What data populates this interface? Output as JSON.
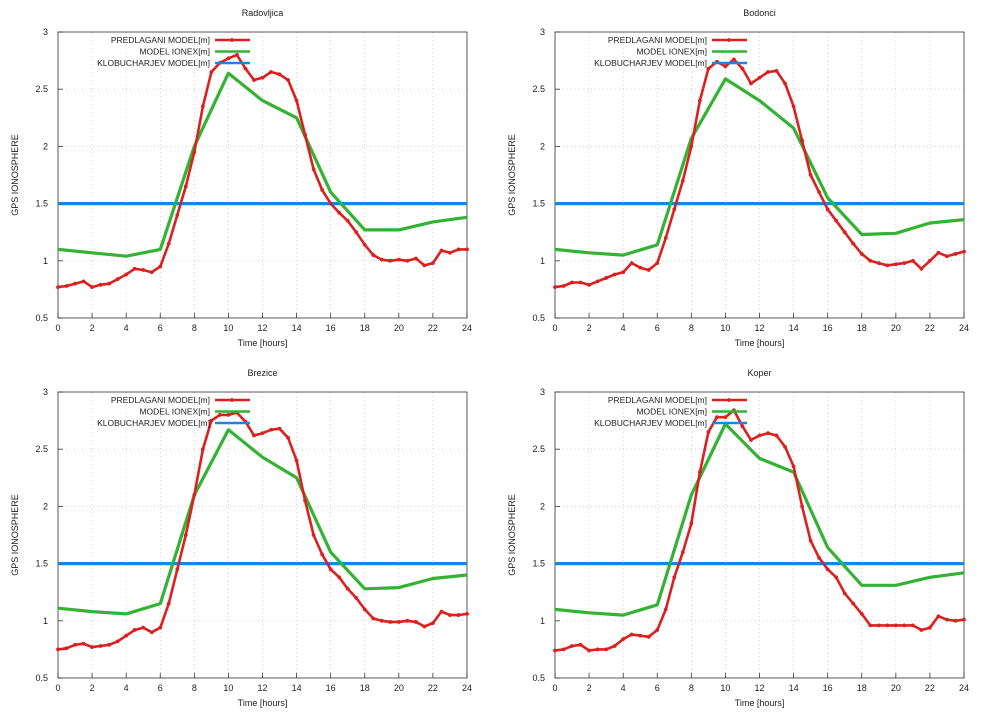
{
  "colors": {
    "predlagani": "#dc1f1f",
    "ionex": "#33b233",
    "klobuchar": "#1a86e0",
    "axis": "#333333",
    "grid": "#b8b8b8"
  },
  "chart_data": [
    {
      "type": "line",
      "title": "Radovljica",
      "xlabel": "Time [hours]",
      "ylabel": "GPS IONOSPHERE",
      "xlim": [
        0,
        24
      ],
      "ylim": [
        0.5,
        3
      ],
      "xticks": [
        0,
        2,
        4,
        6,
        8,
        10,
        12,
        14,
        16,
        18,
        20,
        22,
        24
      ],
      "yticks": [
        0.5,
        1,
        1.5,
        2,
        2.5,
        3
      ],
      "grid": true,
      "legend_position": "top-left",
      "series": [
        {
          "name": "PREDLAGANI MODEL[m]",
          "color": "#dc1f1f",
          "markers": true,
          "x": [
            0,
            0.5,
            1,
            1.5,
            2,
            2.5,
            3,
            3.5,
            4,
            4.5,
            5,
            5.5,
            6,
            6.5,
            7,
            7.5,
            8,
            8.5,
            9,
            9.5,
            10,
            10.5,
            11,
            11.5,
            12,
            12.5,
            13,
            13.5,
            14,
            14.5,
            15,
            15.5,
            16,
            16.5,
            17,
            17.5,
            18,
            18.5,
            19,
            19.5,
            20,
            20.5,
            21,
            21.5,
            22,
            22.5,
            23,
            23.5,
            24
          ],
          "y": [
            0.77,
            0.78,
            0.8,
            0.82,
            0.77,
            0.79,
            0.8,
            0.84,
            0.88,
            0.93,
            0.92,
            0.9,
            0.95,
            1.15,
            1.4,
            1.65,
            1.95,
            2.35,
            2.65,
            2.73,
            2.77,
            2.8,
            2.68,
            2.58,
            2.6,
            2.65,
            2.63,
            2.58,
            2.4,
            2.1,
            1.8,
            1.62,
            1.5,
            1.42,
            1.35,
            1.25,
            1.14,
            1.05,
            1.01,
            1.0,
            1.01,
            1.0,
            1.02,
            0.96,
            0.98,
            1.09,
            1.07,
            1.1,
            1.1
          ]
        },
        {
          "name": "MODEL IONEX[m]",
          "color": "#33b233",
          "markers": false,
          "x": [
            0,
            2,
            4,
            6,
            8,
            10,
            12,
            14,
            16,
            18,
            20,
            22,
            24
          ],
          "y": [
            1.1,
            1.07,
            1.04,
            1.1,
            2.0,
            2.64,
            2.4,
            2.25,
            1.6,
            1.27,
            1.27,
            1.34,
            1.38
          ]
        },
        {
          "name": "KLOBUCHARJEV MODEL[m]",
          "color": "#1a86e0",
          "markers": false,
          "x": [
            0,
            24
          ],
          "y": [
            1.5,
            1.5
          ]
        }
      ]
    },
    {
      "type": "line",
      "title": "Bodonci",
      "xlabel": "Time [hours]",
      "ylabel": "GPS IONOSPHERE",
      "xlim": [
        0,
        24
      ],
      "ylim": [
        0.5,
        3
      ],
      "xticks": [
        0,
        2,
        4,
        6,
        8,
        10,
        12,
        14,
        16,
        18,
        20,
        22,
        24
      ],
      "yticks": [
        0.5,
        1,
        1.5,
        2,
        2.5,
        3
      ],
      "grid": true,
      "legend_position": "top-left",
      "series": [
        {
          "name": "PREDLAGANI MODEL[m]",
          "color": "#dc1f1f",
          "markers": true,
          "x": [
            0,
            0.5,
            1,
            1.5,
            2,
            2.5,
            3,
            3.5,
            4,
            4.5,
            5,
            5.5,
            6,
            6.5,
            7,
            7.5,
            8,
            8.5,
            9,
            9.5,
            10,
            10.5,
            11,
            11.5,
            12,
            12.5,
            13,
            13.5,
            14,
            14.5,
            15,
            15.5,
            16,
            16.5,
            17,
            17.5,
            18,
            18.5,
            19,
            19.5,
            20,
            20.5,
            21,
            21.5,
            22,
            22.5,
            23,
            23.5,
            24
          ],
          "y": [
            0.77,
            0.78,
            0.81,
            0.81,
            0.79,
            0.82,
            0.85,
            0.88,
            0.9,
            0.98,
            0.94,
            0.92,
            0.98,
            1.2,
            1.45,
            1.7,
            2.0,
            2.4,
            2.68,
            2.74,
            2.7,
            2.76,
            2.68,
            2.55,
            2.6,
            2.65,
            2.66,
            2.55,
            2.35,
            2.05,
            1.75,
            1.6,
            1.45,
            1.35,
            1.25,
            1.15,
            1.06,
            1.0,
            0.98,
            0.96,
            0.97,
            0.98,
            1.0,
            0.93,
            1.0,
            1.07,
            1.04,
            1.06,
            1.08
          ]
        },
        {
          "name": "MODEL IONEX[m]",
          "color": "#33b233",
          "markers": false,
          "x": [
            0,
            2,
            4,
            6,
            8,
            10,
            12,
            14,
            16,
            18,
            20,
            22,
            24
          ],
          "y": [
            1.1,
            1.07,
            1.05,
            1.14,
            2.07,
            2.59,
            2.4,
            2.16,
            1.55,
            1.23,
            1.24,
            1.33,
            1.36
          ]
        },
        {
          "name": "KLOBUCHARJEV MODEL[m]",
          "color": "#1a86e0",
          "markers": false,
          "x": [
            0,
            24
          ],
          "y": [
            1.5,
            1.5
          ]
        }
      ]
    },
    {
      "type": "line",
      "title": "Brezice",
      "xlabel": "Time [hours]",
      "ylabel": "GPS IONOSPHERE",
      "xlim": [
        0,
        24
      ],
      "ylim": [
        0.5,
        3
      ],
      "xticks": [
        0,
        2,
        4,
        6,
        8,
        10,
        12,
        14,
        16,
        18,
        20,
        22,
        24
      ],
      "yticks": [
        0.5,
        1,
        1.5,
        2,
        2.5,
        3
      ],
      "grid": true,
      "legend_position": "top-left",
      "series": [
        {
          "name": "PREDLAGANI MODEL[m]",
          "color": "#dc1f1f",
          "markers": true,
          "x": [
            0,
            0.5,
            1,
            1.5,
            2,
            2.5,
            3,
            3.5,
            4,
            4.5,
            5,
            5.5,
            6,
            6.5,
            7,
            7.5,
            8,
            8.5,
            9,
            9.5,
            10,
            10.5,
            11,
            11.5,
            12,
            12.5,
            13,
            13.5,
            14,
            14.5,
            15,
            15.5,
            16,
            16.5,
            17,
            17.5,
            18,
            18.5,
            19,
            19.5,
            20,
            20.5,
            21,
            21.5,
            22,
            22.5,
            23,
            23.5,
            24
          ],
          "y": [
            0.75,
            0.76,
            0.79,
            0.8,
            0.77,
            0.78,
            0.79,
            0.82,
            0.87,
            0.92,
            0.94,
            0.9,
            0.94,
            1.15,
            1.45,
            1.75,
            2.1,
            2.5,
            2.75,
            2.8,
            2.8,
            2.82,
            2.74,
            2.62,
            2.64,
            2.67,
            2.68,
            2.6,
            2.4,
            2.05,
            1.75,
            1.58,
            1.45,
            1.38,
            1.28,
            1.2,
            1.1,
            1.02,
            1.0,
            0.99,
            0.99,
            1.0,
            0.99,
            0.95,
            0.98,
            1.08,
            1.05,
            1.05,
            1.06
          ]
        },
        {
          "name": "MODEL IONEX[m]",
          "color": "#33b233",
          "markers": false,
          "x": [
            0,
            2,
            4,
            6,
            8,
            10,
            12,
            14,
            16,
            18,
            20,
            22,
            24
          ],
          "y": [
            1.11,
            1.08,
            1.06,
            1.15,
            2.1,
            2.67,
            2.43,
            2.25,
            1.6,
            1.28,
            1.29,
            1.37,
            1.4
          ]
        },
        {
          "name": "KLOBUCHARJEV MODEL[m]",
          "color": "#1a86e0",
          "markers": false,
          "x": [
            0,
            24
          ],
          "y": [
            1.5,
            1.5
          ]
        }
      ]
    },
    {
      "type": "line",
      "title": "Koper",
      "xlabel": "Time [hours]",
      "ylabel": "GPS IONOSPHERE",
      "xlim": [
        0,
        24
      ],
      "ylim": [
        0.5,
        3
      ],
      "xticks": [
        0,
        2,
        4,
        6,
        8,
        10,
        12,
        14,
        16,
        18,
        20,
        22,
        24
      ],
      "yticks": [
        0.5,
        1,
        1.5,
        2,
        2.5,
        3
      ],
      "grid": true,
      "legend_position": "top-left",
      "series": [
        {
          "name": "PREDLAGANI MODEL[m]",
          "color": "#dc1f1f",
          "markers": true,
          "x": [
            0,
            0.5,
            1,
            1.5,
            2,
            2.5,
            3,
            3.5,
            4,
            4.5,
            5,
            5.5,
            6,
            6.5,
            7,
            7.5,
            8,
            8.5,
            9,
            9.5,
            10,
            10.5,
            11,
            11.5,
            12,
            12.5,
            13,
            13.5,
            14,
            14.5,
            15,
            15.5,
            16,
            16.5,
            17,
            17.5,
            18,
            18.5,
            19,
            19.5,
            20,
            20.5,
            21,
            21.5,
            22,
            22.5,
            23,
            23.5,
            24
          ],
          "y": [
            0.74,
            0.75,
            0.78,
            0.79,
            0.74,
            0.75,
            0.75,
            0.78,
            0.84,
            0.88,
            0.87,
            0.86,
            0.92,
            1.1,
            1.38,
            1.6,
            1.85,
            2.3,
            2.65,
            2.78,
            2.78,
            2.84,
            2.7,
            2.58,
            2.62,
            2.64,
            2.62,
            2.52,
            2.35,
            2.0,
            1.7,
            1.55,
            1.45,
            1.38,
            1.24,
            1.15,
            1.06,
            0.96,
            0.96,
            0.96,
            0.96,
            0.96,
            0.96,
            0.92,
            0.94,
            1.04,
            1.01,
            1.0,
            1.01
          ]
        },
        {
          "name": "MODEL IONEX[m]",
          "color": "#33b233",
          "markers": false,
          "x": [
            0,
            2,
            4,
            6,
            8,
            10,
            12,
            14,
            16,
            18,
            20,
            22,
            24
          ],
          "y": [
            1.1,
            1.07,
            1.05,
            1.14,
            2.1,
            2.72,
            2.42,
            2.3,
            1.64,
            1.31,
            1.31,
            1.38,
            1.42
          ]
        },
        {
          "name": "KLOBUCHARJEV MODEL[m]",
          "color": "#1a86e0",
          "markers": false,
          "x": [
            0,
            24
          ],
          "y": [
            1.5,
            1.5
          ]
        }
      ]
    }
  ]
}
